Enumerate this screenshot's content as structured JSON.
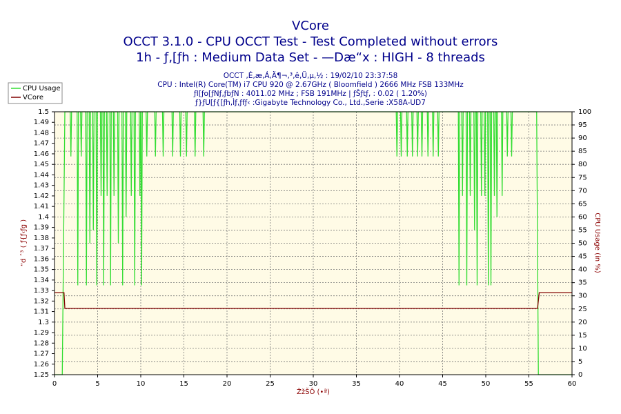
{
  "chart_data": {
    "type": "line",
    "title": "VCore",
    "subtitle": "OCCT 3.1.0 - CPU OCCT Test - Test Completed without errors",
    "subtitle2": "1h - ƒ‚[ƒh : Medium Data Set - —Dæ“x : HIGH - 8 threads",
    "info": [
      "OCCT ‚É‚æ‚Á‚Ä¶¬‚³‚ê‚Ü‚µ‚½ : 19/02/10 23:37:58",
      "CPU : Intel(R) Core(TM) i7 CPU 920 @ 2.67GHz ( Bloomfield ) 2666 MHz FSB 133MHz",
      "ƒI[ƒo[ƒNƒ‚ƒbƒN : 4011.02 MHz ; FSB 191MHz | ƒŠƒtƒ‚ : 0.02 ( 1.20%)",
      "ƒ}ƒU[ƒ{[ƒh‚Ìƒ‚ƒfƒ‹ :Gigabyte Technology Co., Ltd.,Serie :X58A-UD7"
    ],
    "x_label": "ŽžŠÔ (•ª)",
    "y_label": "“d ˆ³ ( ƒ{ƒ‹ƒg )",
    "y2_label": "CPU Usage (in %)",
    "xlim": [
      0,
      60
    ],
    "xticks": [
      0,
      5,
      10,
      15,
      20,
      25,
      30,
      35,
      40,
      45,
      50,
      55,
      60
    ],
    "ylim": [
      1.25,
      1.5
    ],
    "yticks": [
      1.25,
      1.26,
      1.27,
      1.28,
      1.29,
      1.3,
      1.31,
      1.32,
      1.33,
      1.34,
      1.35,
      1.36,
      1.37,
      1.38,
      1.39,
      1.4,
      1.41,
      1.42,
      1.43,
      1.44,
      1.45,
      1.46,
      1.47,
      1.48,
      1.49,
      1.5
    ],
    "y2lim": [
      0,
      100
    ],
    "y2ticks": [
      0,
      5,
      10,
      15,
      20,
      25,
      30,
      35,
      40,
      45,
      50,
      55,
      60,
      65,
      70,
      75,
      80,
      85,
      90,
      95,
      100
    ],
    "grid": true,
    "legend": "top-left",
    "series": [
      {
        "name": "CPU Usage",
        "color": "#33dd33",
        "axis": "y2",
        "x": [
          0,
          0.9,
          1.2,
          1.82,
          1.9,
          1.98,
          2.62,
          2.7,
          2.78,
          3.02,
          3.1,
          3.18,
          3.62,
          3.7,
          3.78,
          4.02,
          4.1,
          4.18,
          4.42,
          4.5,
          4.58,
          4.82,
          4.9,
          4.98,
          5.32,
          5.4,
          5.48,
          5.62,
          5.7,
          5.78,
          6.02,
          6.1,
          6.18,
          6.42,
          6.5,
          6.58,
          6.82,
          6.9,
          6.98,
          7.32,
          7.4,
          7.48,
          7.82,
          7.9,
          7.98,
          8.22,
          8.3,
          8.38,
          8.82,
          8.9,
          8.98,
          9.22,
          9.3,
          9.38,
          9.82,
          9.9,
          9.98,
          10.02,
          10.1,
          10.18,
          10.62,
          10.7,
          10.78,
          11.62,
          11.7,
          11.78,
          12.52,
          12.6,
          12.68,
          13.62,
          13.7,
          13.78,
          14.52,
          14.6,
          14.68,
          15.22,
          15.3,
          15.38,
          16.22,
          16.3,
          16.38,
          17.22,
          17.3,
          17.38,
          39.62,
          39.7,
          39.78,
          40.12,
          40.2,
          40.28,
          40.82,
          40.9,
          40.98,
          41.42,
          41.5,
          41.58,
          42.02,
          42.1,
          42.18,
          42.52,
          42.6,
          42.68,
          43.22,
          43.3,
          43.38,
          43.82,
          43.9,
          43.98,
          44.42,
          44.5,
          44.58,
          46.82,
          46.9,
          46.98,
          47.22,
          47.3,
          47.38,
          47.72,
          47.8,
          47.88,
          48.12,
          48.2,
          48.28,
          48.62,
          48.7,
          48.78,
          48.92,
          49,
          49.08,
          49.42,
          49.5,
          49.58,
          49.82,
          49.9,
          49.98,
          50.22,
          50.3,
          50.38,
          50.52,
          50.6,
          50.68,
          50.92,
          51,
          51.08,
          51.22,
          51.3,
          51.38,
          51.82,
          51.9,
          51.98,
          52.42,
          52.5,
          52.58,
          52.92,
          53,
          53.08,
          55.9,
          56.1,
          60
        ],
        "values": [
          0,
          0,
          100,
          100,
          83,
          100,
          100,
          34,
          100,
          100,
          83,
          100,
          100,
          34,
          100,
          100,
          50,
          100,
          100,
          55,
          100,
          100,
          34,
          100,
          100,
          68,
          100,
          100,
          34,
          100,
          100,
          68,
          100,
          100,
          34,
          100,
          100,
          68,
          100,
          100,
          50,
          100,
          100,
          34,
          100,
          100,
          60,
          100,
          100,
          68,
          100,
          100,
          34,
          100,
          100,
          68,
          100,
          100,
          34,
          100,
          100,
          83,
          100,
          100,
          83,
          100,
          100,
          83,
          100,
          100,
          83,
          100,
          100,
          83,
          100,
          100,
          83,
          100,
          100,
          83,
          100,
          100,
          83,
          100,
          100,
          83,
          100,
          100,
          83,
          100,
          100,
          83,
          100,
          100,
          83,
          100,
          100,
          83,
          100,
          100,
          83,
          100,
          100,
          83,
          100,
          100,
          83,
          100,
          100,
          83,
          100,
          100,
          34,
          100,
          100,
          68,
          100,
          100,
          34,
          100,
          100,
          68,
          100,
          100,
          55,
          100,
          100,
          34,
          100,
          100,
          68,
          100,
          100,
          68,
          100,
          100,
          34,
          100,
          100,
          34,
          100,
          100,
          68,
          100,
          100,
          60,
          100,
          100,
          68,
          100,
          100,
          83,
          100,
          100,
          83,
          100,
          100,
          0,
          0
        ]
      },
      {
        "name": "VCore",
        "color": "#800000",
        "x": [
          0,
          1.1,
          1.2,
          56,
          56.2,
          60
        ],
        "values": [
          1.328,
          1.328,
          1.313,
          1.313,
          1.328,
          1.328
        ]
      }
    ]
  }
}
